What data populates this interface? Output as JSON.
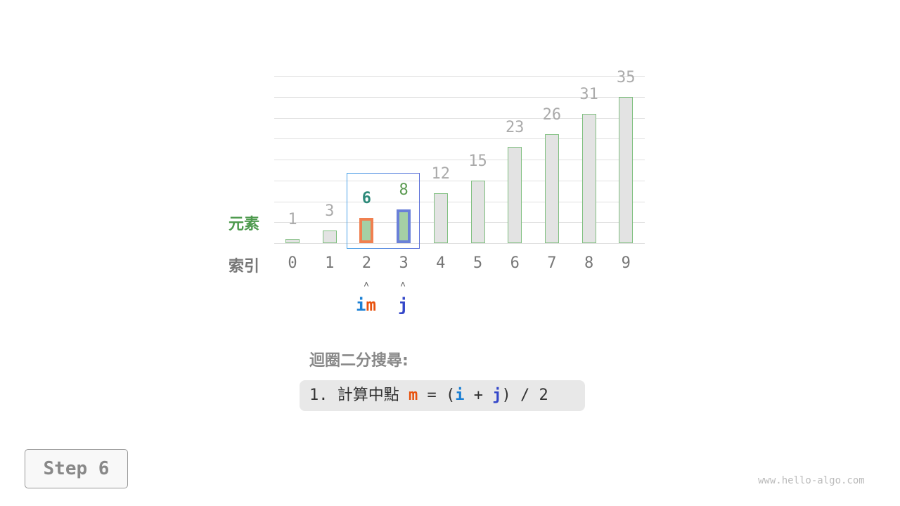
{
  "chart_data": {
    "type": "bar",
    "categories": [
      "0",
      "1",
      "2",
      "3",
      "4",
      "5",
      "6",
      "7",
      "8",
      "9"
    ],
    "values": [
      1,
      3,
      6,
      8,
      12,
      15,
      23,
      26,
      31,
      35
    ],
    "ylim": [
      0,
      40
    ],
    "grid": true
  },
  "labels": {
    "element": "元素",
    "index": "索引"
  },
  "highlight": {
    "i_index": 2,
    "m_index": 2,
    "j_index": 3,
    "range": [
      2,
      3
    ],
    "colors": {
      "i": "#1a7fd4",
      "m": "#e8520e",
      "j": "#3447c9",
      "m_bar_border": "#f08050",
      "j_bar_border": "#6a80d8",
      "active_fill": "#a5d0a5",
      "m_value": "#2e8a7a",
      "j_value": "#5a9a50",
      "element_label": "#4e9a4e"
    }
  },
  "pointers": {
    "i": "i",
    "m": "m",
    "j": "j",
    "arrow": "˄"
  },
  "section_title": "迴圈二分搜尋:",
  "formula": {
    "prefix": "1. 計算中點 ",
    "m": "m",
    "eq": " = (",
    "i": "i",
    "plus": " + ",
    "j": "j",
    "suffix": ") / 2"
  },
  "step_label": "Step 6",
  "footer": "www.hello-algo.com"
}
